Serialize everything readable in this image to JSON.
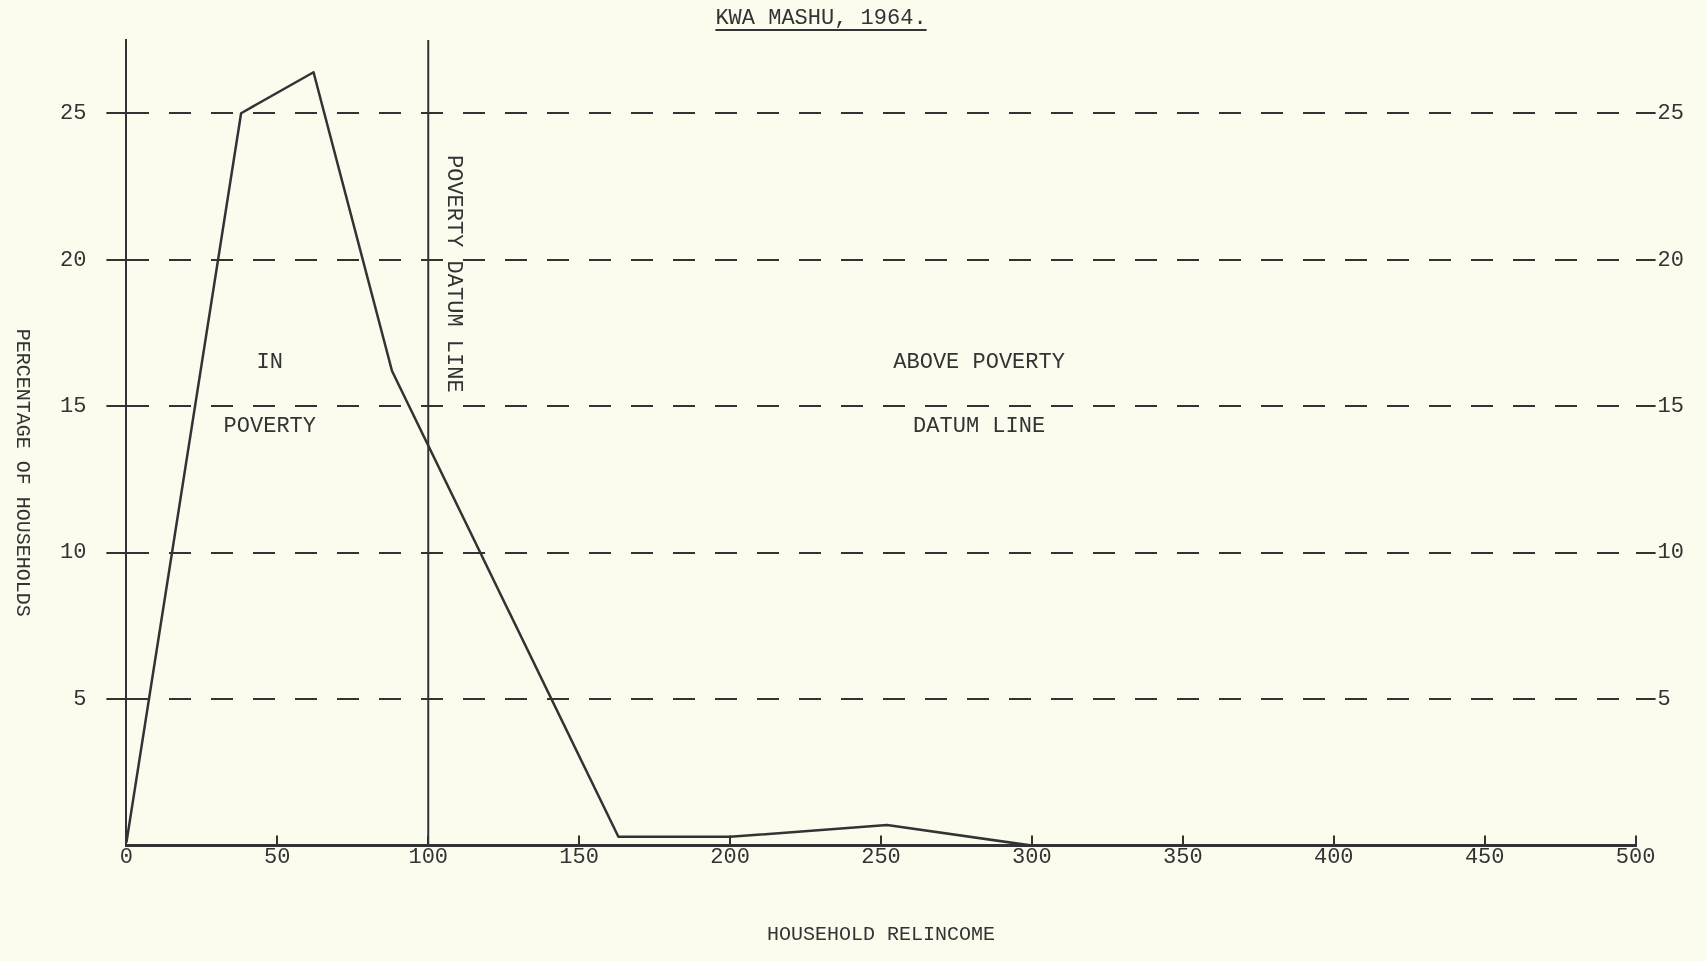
{
  "chart_data": {
    "type": "line",
    "title": "KWA MASHU, 1964.",
    "xlabel": "HOUSEHOLD RELINCOME",
    "ylabel": "PERCENTAGE OF HOUSEHOLDS",
    "x": [
      0,
      38,
      62,
      88,
      113,
      163,
      200,
      252,
      300
    ],
    "series": [
      {
        "color": "#333333",
        "values": [
          0.1,
          25,
          26.4,
          16.2,
          10.9,
          0.3,
          0.3,
          0.7,
          0
        ]
      }
    ],
    "xlim": [
      0,
      500
    ],
    "xticks": [
      0,
      50,
      100,
      150,
      200,
      250,
      300,
      350,
      400,
      450,
      500
    ],
    "ylim": [
      0,
      27.5
    ],
    "yticks": [
      5,
      10,
      15,
      20,
      25
    ],
    "y2lim": [
      0,
      27.5
    ],
    "y2ticks": [
      5,
      10,
      15,
      20,
      25
    ],
    "ref_lines": [
      {
        "axis": "x",
        "value": 100,
        "label": "POVERTY DATUM LINE"
      }
    ],
    "annotations": [
      "IN POVERTY",
      "ABOVE POVERTY DATUM LINE"
    ],
    "grid": "y",
    "legend": false,
    "marker": "none",
    "line_style": "solid"
  }
}
